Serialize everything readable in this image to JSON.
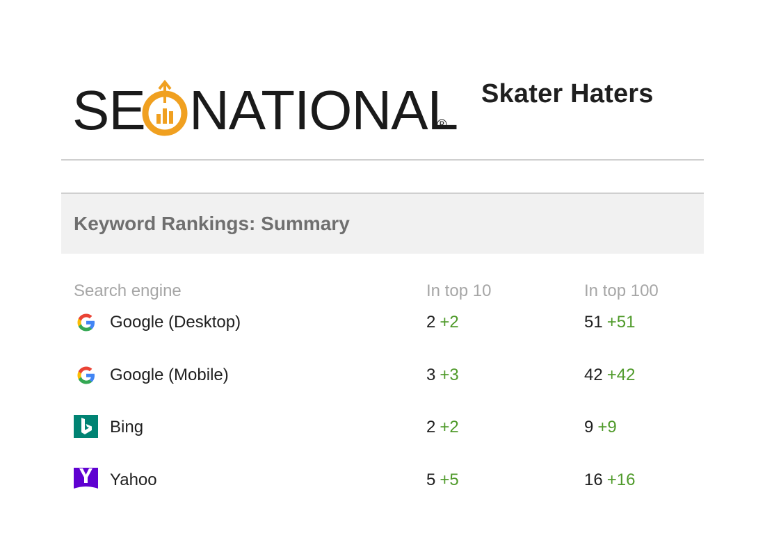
{
  "header": {
    "logo_text": "SEONATIONAL",
    "logo_reg": "®",
    "report_title": "Skater Haters"
  },
  "section": {
    "title": "Keyword Rankings: Summary"
  },
  "table": {
    "columns": [
      "Search engine",
      "In top 10",
      "In top 100"
    ],
    "rows": [
      {
        "engine": "Google (Desktop)",
        "icon": "google-icon",
        "top10": "2",
        "top10_delta": "+2",
        "top100": "51",
        "top100_delta": "+51"
      },
      {
        "engine": "Google (Mobile)",
        "icon": "google-icon",
        "top10": "3",
        "top10_delta": "+3",
        "top100": "42",
        "top100_delta": "+42"
      },
      {
        "engine": "Bing",
        "icon": "bing-icon",
        "top10": "2",
        "top10_delta": "+2",
        "top100": "9",
        "top100_delta": "+9"
      },
      {
        "engine": "Yahoo",
        "icon": "yahoo-icon",
        "top10": "5",
        "top10_delta": "+5",
        "top100": "16",
        "top100_delta": "+16"
      }
    ]
  },
  "colors": {
    "positive_delta": "#4f9a2a",
    "logo_orange": "#f0a020",
    "bing_teal": "#008373",
    "yahoo_purple": "#5f01d1"
  }
}
